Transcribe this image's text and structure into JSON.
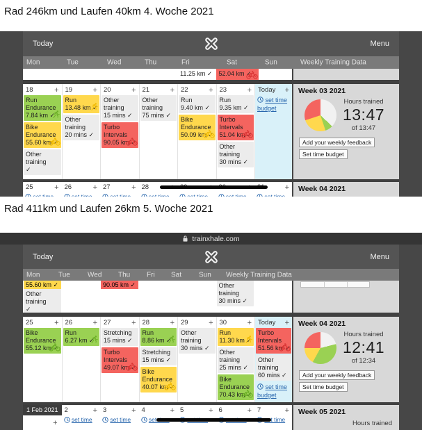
{
  "headings": {
    "first": "Rad 246km und Laufen 40km 4. Woche 2021",
    "second": "Rad 411km und Laufen 26km 5. Woche 2021"
  },
  "browser": {
    "url": "trainxhale.com"
  },
  "toolbar": {
    "today": "Today",
    "menu": "Menu"
  },
  "day_headers": [
    "Mon",
    "Tue",
    "Wed",
    "Thu",
    "Fri",
    "Sat",
    "Sun"
  ],
  "weekly_header": "Weekly Training Data",
  "misc": {
    "plus": "+"
  },
  "colors": {
    "card": {
      "green": "#9ad153",
      "yellow": "#ffd84d",
      "red": "#f4645f",
      "neutral": "#ececec"
    },
    "icon": {
      "green": "#6aae25",
      "yellow": "#efb900",
      "red": "#d93434",
      "neutral": "#888888"
    },
    "today_bg": "#d9f1f9",
    "link": "#2866ad",
    "frame": "#474747",
    "panel": "#d8d8d8"
  },
  "shot1": {
    "fragments": [
      {
        "col": 4,
        "kind": "plain",
        "text": "11.25 km ✓",
        "icon": ""
      },
      {
        "col": 5,
        "kind": "red",
        "text": "52.04 km ✓",
        "icon": "bike"
      }
    ],
    "week": {
      "days": [
        {
          "num": "18",
          "cards": [
            {
              "color": "green",
              "icon": "runner",
              "lines": [
                "Run",
                "Endurance",
                "7.84 km ✓"
              ]
            },
            {
              "color": "yellow",
              "icon": "bike",
              "lines": [
                "Bike",
                "Endurance",
                "55.60 km ✓"
              ]
            },
            {
              "color": "neutral",
              "icon": "",
              "lines": [
                "Other",
                "training",
                "✓"
              ]
            }
          ]
        },
        {
          "num": "19",
          "cards": [
            {
              "color": "yellow",
              "icon": "runner",
              "lines": [
                "Run",
                "13.48 km ✓"
              ]
            },
            {
              "color": "neutral",
              "icon": "",
              "lines": [
                "Other",
                "training",
                "20 mins ✓"
              ]
            }
          ]
        },
        {
          "num": "20",
          "cards": [
            {
              "color": "neutral",
              "icon": "",
              "lines": [
                "Other",
                "training",
                "15 mins ✓"
              ]
            },
            {
              "color": "red",
              "icon": "bike",
              "lines": [
                "Turbo",
                "Intervals",
                "90.05 km ✓"
              ]
            }
          ]
        },
        {
          "num": "21",
          "cards": [
            {
              "color": "neutral",
              "icon": "",
              "lines": [
                "Other",
                "training",
                "75 mins ✓"
              ]
            }
          ]
        },
        {
          "num": "22",
          "cards": [
            {
              "color": "neutral",
              "icon": "",
              "lines": [
                "Run",
                "9.40 km ✓"
              ]
            },
            {
              "color": "yellow",
              "icon": "bike",
              "lines": [
                "Bike",
                "Endurance",
                "50.09 km ✓"
              ]
            }
          ]
        },
        {
          "num": "23",
          "cards": [
            {
              "color": "neutral",
              "icon": "",
              "lines": [
                "Run",
                "9.35 km ✓"
              ]
            },
            {
              "color": "red",
              "icon": "bike",
              "lines": [
                "Turbo",
                "Intervals",
                "51.04 km ✓"
              ]
            },
            {
              "color": "neutral",
              "icon": "",
              "lines": [
                "Other",
                "training",
                "30 mins ✓"
              ]
            }
          ]
        }
      ],
      "today": {
        "label": "Today",
        "cards": [],
        "link": "set time budget"
      }
    },
    "panel": {
      "title": "Week 03 2021",
      "hours_label": "Hours trained",
      "hours": "13:47",
      "of_label": "of 13:47",
      "feedback_button": "Add your weekly feedback",
      "budget_button": "Set time budget",
      "pie": [
        {
          "color": "#f2f2f2",
          "pct": 37
        },
        {
          "color": "#9ad153",
          "pct": 8
        },
        {
          "color": "#ffd84d",
          "pct": 25
        },
        {
          "color": "#f4645f",
          "pct": 30
        }
      ]
    },
    "next_strip": {
      "nums": [
        "25",
        "26",
        "27",
        "28",
        "29",
        "30",
        "31"
      ],
      "panel_title": "Week 04 2021",
      "set_time": "set time"
    }
  },
  "shot2": {
    "fragments": [
      {
        "col": 0,
        "items": [
          {
            "kind": "strip",
            "color": "yellow",
            "text": "55.60 km ✓"
          },
          {
            "kind": "card",
            "color": "neutral",
            "lines": [
              "Other",
              "training",
              "✓"
            ]
          }
        ]
      },
      {
        "col": 2,
        "items": [
          {
            "kind": "strip",
            "color": "red",
            "text": "90.05 km ✓"
          }
        ]
      },
      {
        "col": 5,
        "items": [
          {
            "kind": "card",
            "color": "neutral",
            "lines": [
              "Other",
              "training",
              "30 mins ✓"
            ]
          }
        ]
      }
    ],
    "week": {
      "days": [
        {
          "num": "25",
          "cards": [
            {
              "color": "green",
              "icon": "bike",
              "lines": [
                "Bike",
                "Endurance",
                "55.12 km ✓"
              ]
            }
          ]
        },
        {
          "num": "26",
          "cards": [
            {
              "color": "green",
              "icon": "runner",
              "lines": [
                "Run",
                "6.27 km ✓"
              ]
            }
          ]
        },
        {
          "num": "27",
          "cards": [
            {
              "color": "neutral",
              "icon": "",
              "lines": [
                "Stretching",
                "15 mins ✓"
              ]
            },
            {
              "color": "red",
              "icon": "bike",
              "lines": [
                "Turbo",
                "Intervals",
                "49.07 km ✓"
              ]
            }
          ]
        },
        {
          "num": "28",
          "cards": [
            {
              "color": "green",
              "icon": "runner",
              "lines": [
                "Run",
                "8.86 km ✓"
              ]
            },
            {
              "color": "neutral",
              "icon": "",
              "lines": [
                "Stretching",
                "15 mins ✓"
              ]
            },
            {
              "color": "yellow",
              "icon": "bike",
              "lines": [
                "Bike",
                "Endurance",
                "40.07 km ✓"
              ]
            }
          ]
        },
        {
          "num": "29",
          "cards": [
            {
              "color": "neutral",
              "icon": "",
              "lines": [
                "Other",
                "training",
                "30 mins ✓"
              ]
            }
          ]
        },
        {
          "num": "30",
          "cards": [
            {
              "color": "yellow",
              "icon": "runner",
              "lines": [
                "Run",
                "11.30 km ✓"
              ]
            },
            {
              "color": "neutral",
              "icon": "",
              "lines": [
                "Other",
                "training",
                "25 mins ✓"
              ]
            },
            {
              "color": "green",
              "icon": "bike",
              "lines": [
                "Bike",
                "Endurance",
                "70.43 km ✓"
              ]
            }
          ]
        }
      ],
      "today": {
        "label": "Today",
        "cards": [
          {
            "color": "red",
            "icon": "bike",
            "lines": [
              "Turbo",
              "Intervals",
              "51.56 km ✓"
            ]
          },
          {
            "color": "neutral",
            "icon": "",
            "lines": [
              "Other",
              "training",
              "60 mins ✓"
            ]
          }
        ],
        "link": "set time budget"
      }
    },
    "panel": {
      "title": "Week 04 2021",
      "hours_label": "Hours trained",
      "hours": "12:41",
      "of_label": "of 12:34",
      "feedback_button": "Add your weekly feedback",
      "budget_button": "Set time budget",
      "pie": [
        {
          "color": "#f2f2f2",
          "pct": 21
        },
        {
          "color": "#9ad153",
          "pct": 37
        },
        {
          "color": "#ffd84d",
          "pct": 17
        },
        {
          "color": "#f4645f",
          "pct": 25
        }
      ]
    },
    "next_strip": {
      "badge": "1 Feb 2021",
      "nums": [
        "2",
        "3",
        "4",
        "5",
        "6",
        "7"
      ],
      "panel_title": "Week 05 2021",
      "panel_sub": "Hours trained",
      "set_time": "set time"
    }
  }
}
